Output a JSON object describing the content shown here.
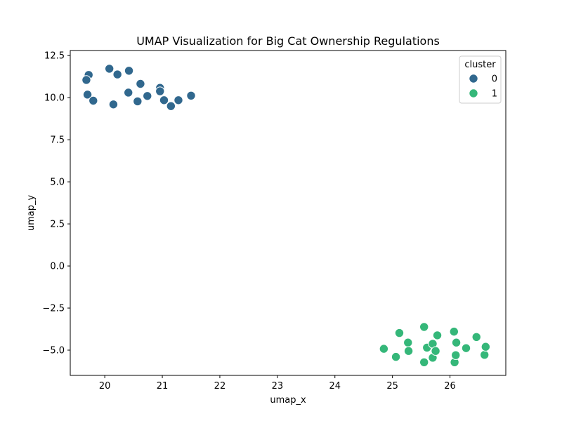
{
  "chart_data": {
    "type": "scatter",
    "title": "UMAP Visualization for Big Cat Ownership Regulations",
    "xlabel": "umap_x",
    "ylabel": "umap_y",
    "xlim": [
      19.4,
      26.97
    ],
    "ylim": [
      -6.5,
      12.8
    ],
    "xticks": [
      20,
      21,
      22,
      23,
      24,
      25,
      26
    ],
    "yticks": [
      -5.0,
      -2.5,
      0.0,
      2.5,
      5.0,
      7.5,
      10.0,
      12.5
    ],
    "ytick_labels": [
      "−5.0",
      "−2.5",
      "0.0",
      "2.5",
      "5.0",
      "7.5",
      "10.0",
      "12.5"
    ],
    "legend": {
      "title": "cluster",
      "position": "top-right",
      "entries": [
        {
          "label": "0",
          "color": "#31688e"
        },
        {
          "label": "1",
          "color": "#35b779"
        }
      ]
    },
    "series": [
      {
        "name": "0",
        "color": "#31688e",
        "points": [
          [
            19.72,
            11.35
          ],
          [
            19.68,
            11.05
          ],
          [
            19.7,
            10.18
          ],
          [
            19.8,
            9.82
          ],
          [
            20.08,
            11.72
          ],
          [
            20.22,
            11.38
          ],
          [
            20.15,
            9.6
          ],
          [
            20.42,
            11.6
          ],
          [
            20.41,
            10.3
          ],
          [
            20.57,
            9.78
          ],
          [
            20.62,
            10.82
          ],
          [
            20.74,
            10.1
          ],
          [
            20.96,
            10.58
          ],
          [
            20.96,
            10.38
          ],
          [
            21.03,
            9.85
          ],
          [
            21.15,
            9.5
          ],
          [
            21.28,
            9.85
          ],
          [
            21.5,
            10.12
          ]
        ]
      },
      {
        "name": "1",
        "color": "#35b779",
        "points": [
          [
            24.85,
            -4.92
          ],
          [
            25.06,
            -5.4
          ],
          [
            25.12,
            -3.98
          ],
          [
            25.27,
            -4.55
          ],
          [
            25.28,
            -5.05
          ],
          [
            25.55,
            -3.62
          ],
          [
            25.55,
            -5.72
          ],
          [
            25.6,
            -4.85
          ],
          [
            25.7,
            -4.62
          ],
          [
            25.7,
            -5.45
          ],
          [
            25.75,
            -5.05
          ],
          [
            25.78,
            -4.12
          ],
          [
            26.07,
            -3.9
          ],
          [
            26.08,
            -5.72
          ],
          [
            26.1,
            -5.3
          ],
          [
            26.11,
            -4.55
          ],
          [
            26.28,
            -4.88
          ],
          [
            26.46,
            -4.22
          ],
          [
            26.6,
            -5.28
          ],
          [
            26.62,
            -4.8
          ]
        ]
      }
    ]
  }
}
